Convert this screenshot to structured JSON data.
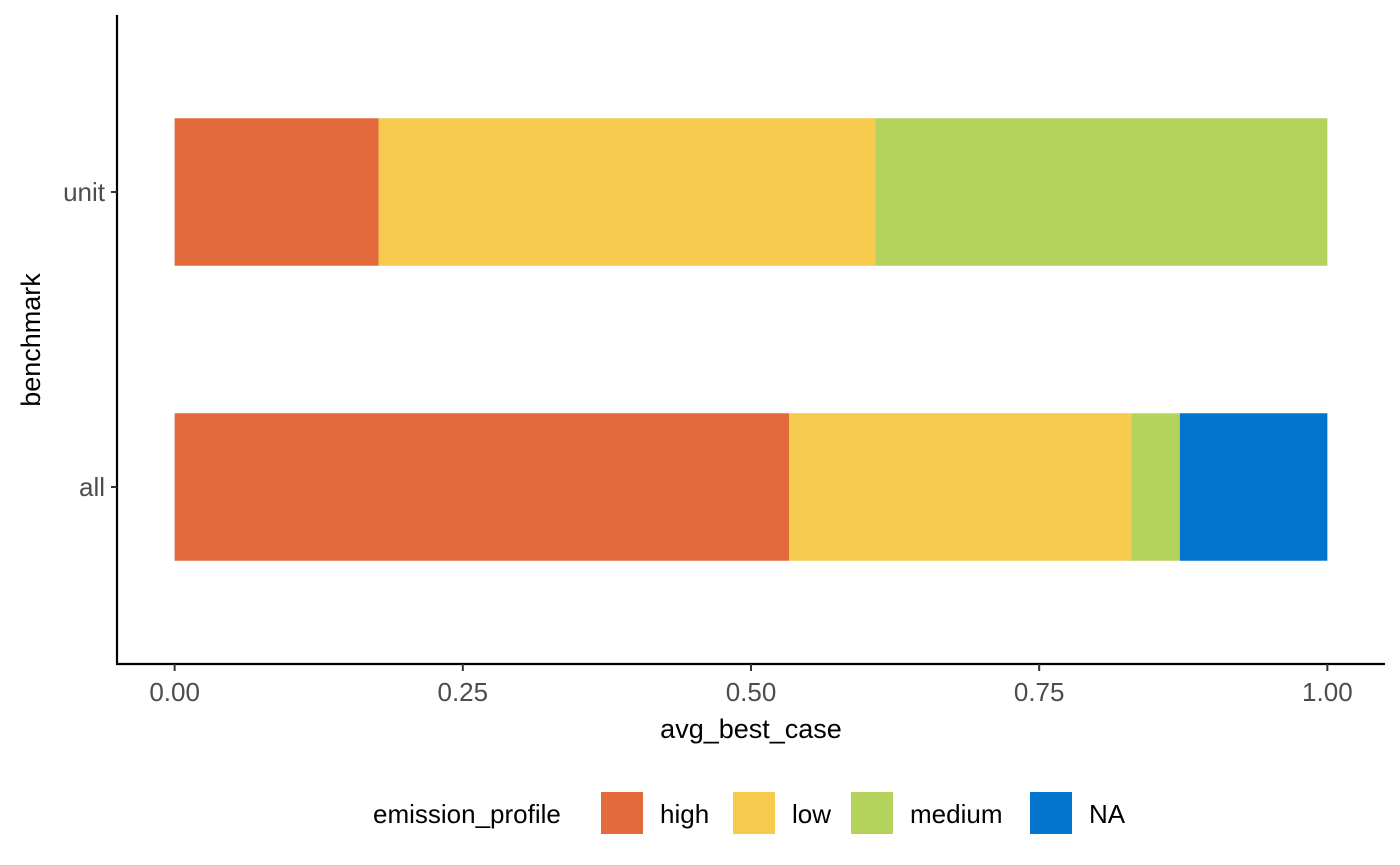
{
  "chart_data": {
    "type": "bar",
    "orientation": "horizontal",
    "stacked": true,
    "categories": [
      "all",
      "unit"
    ],
    "series": [
      {
        "name": "high",
        "color": "#E36A3A",
        "values": [
          0.533,
          0.177
        ]
      },
      {
        "name": "low",
        "color": "#F6CA4D",
        "values": [
          0.297,
          0.431
        ]
      },
      {
        "name": "medium",
        "color": "#B3D35C",
        "values": [
          0.042,
          0.392
        ]
      },
      {
        "name": "NA",
        "color": "#0375CC",
        "values": [
          0.128,
          0
        ]
      }
    ],
    "xlabel": "avg_best_case",
    "ylabel": "benchmark",
    "xlim": [
      -0.05,
      1.05
    ],
    "xticks": [
      0,
      0.25,
      0.5,
      0.75,
      1
    ],
    "xtick_labels": [
      "0.00",
      "0.25",
      "0.50",
      "0.75",
      "1.00"
    ],
    "legend": {
      "title": "emission_profile",
      "position": "bottom",
      "entries": [
        "high",
        "low",
        "medium",
        "NA"
      ]
    },
    "grid": false
  }
}
